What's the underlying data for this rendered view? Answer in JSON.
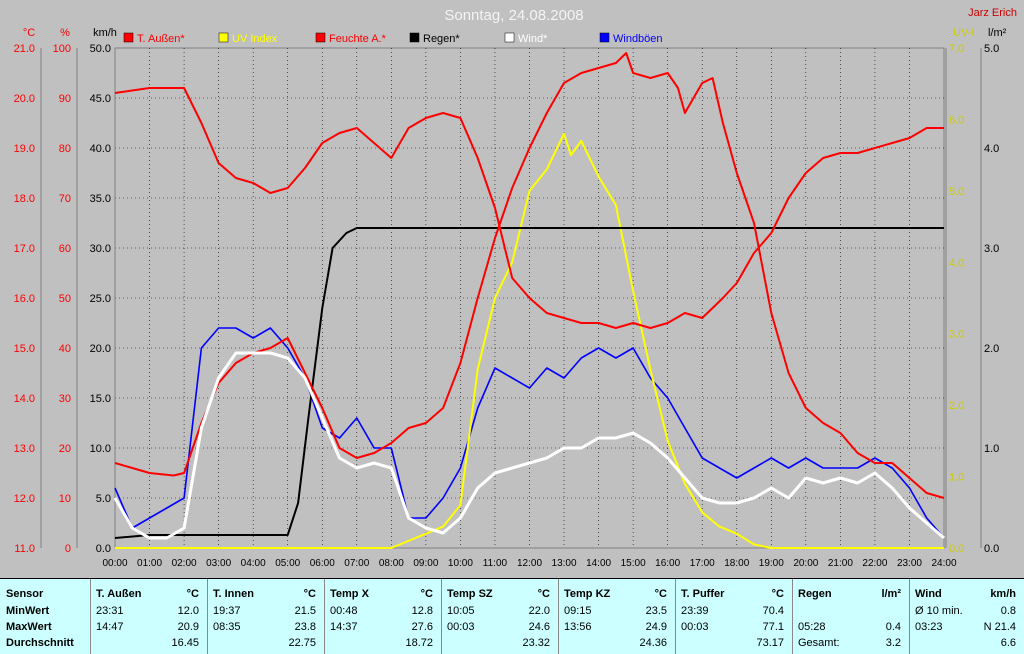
{
  "title": "Sonntag, 24.08.2008",
  "author": "Jarz Erich",
  "axis_units": {
    "temp": "°C",
    "hum": "%",
    "wind": "km/h",
    "uv": "UV-I",
    "rain": "l/m²"
  },
  "legend": [
    {
      "label": "T. Außen*",
      "color": "#ff0000"
    },
    {
      "label": "UV Index",
      "color": "#ffff00"
    },
    {
      "label": "Feuchte A.*",
      "color": "#ff0000"
    },
    {
      "label": "Regen*",
      "color": "#000000"
    },
    {
      "label": "Wind*",
      "color": "#ffffff"
    },
    {
      "label": "Windböen",
      "color": "#0000ff"
    }
  ],
  "chart_data": {
    "type": "line",
    "title": "Sonntag, 24.08.2008",
    "x_labels": [
      "00:00",
      "01:00",
      "02:00",
      "03:00",
      "04:00",
      "05:00",
      "06:00",
      "07:00",
      "08:00",
      "09:00",
      "10:00",
      "11:00",
      "12:00",
      "13:00",
      "14:00",
      "15:00",
      "16:00",
      "17:00",
      "18:00",
      "19:00",
      "20:00",
      "21:00",
      "22:00",
      "23:00",
      "24:00"
    ],
    "xlim": [
      0,
      24
    ],
    "grid": true,
    "axes": {
      "temp": {
        "unit": "°C",
        "ticks": [
          "21.0",
          "20.0",
          "19.0",
          "18.0",
          "17.0",
          "16.0",
          "15.0",
          "14.0",
          "13.0",
          "12.0",
          "11.0"
        ],
        "range": [
          11,
          21
        ]
      },
      "hum": {
        "unit": "%",
        "ticks": [
          "100",
          "90",
          "80",
          "70",
          "60",
          "50",
          "40",
          "30",
          "20",
          "10",
          "0"
        ],
        "range": [
          0,
          100
        ]
      },
      "wind": {
        "unit": "km/h",
        "ticks": [
          "50.0",
          "45.0",
          "40.0",
          "35.0",
          "30.0",
          "25.0",
          "20.0",
          "15.0",
          "10.0",
          "5.0",
          "0.0"
        ],
        "range": [
          0,
          50
        ]
      },
      "uv": {
        "unit": "UV-I",
        "ticks": [
          "7.0",
          "6.0",
          "5.0",
          "4.0",
          "3.0",
          "2.0",
          "1.0",
          "0.0"
        ],
        "range": [
          0,
          7
        ]
      },
      "rain": {
        "unit": "l/m²",
        "ticks": [
          "5.0",
          "4.0",
          "3.0",
          "2.0",
          "1.0",
          "0.0"
        ],
        "range": [
          0,
          5
        ]
      }
    },
    "series": [
      {
        "name": "T. Außen*",
        "axis": "temp",
        "color": "#ff0000",
        "points": [
          [
            0,
            12.7
          ],
          [
            1,
            12.5
          ],
          [
            1.7,
            12.45
          ],
          [
            2,
            12.5
          ],
          [
            2.5,
            13.5
          ],
          [
            3,
            14.3
          ],
          [
            3.5,
            14.7
          ],
          [
            4,
            14.9
          ],
          [
            4.5,
            15.0
          ],
          [
            5,
            15.2
          ],
          [
            5.5,
            14.5
          ],
          [
            6,
            13.8
          ],
          [
            6.5,
            13.0
          ],
          [
            7,
            12.8
          ],
          [
            7.5,
            12.9
          ],
          [
            8,
            13.1
          ],
          [
            8.5,
            13.4
          ],
          [
            9,
            13.5
          ],
          [
            9.5,
            13.8
          ],
          [
            10,
            14.7
          ],
          [
            10.5,
            16.0
          ],
          [
            11,
            17.2
          ],
          [
            11.5,
            18.2
          ],
          [
            12,
            19.0
          ],
          [
            12.5,
            19.7
          ],
          [
            13,
            20.3
          ],
          [
            13.5,
            20.5
          ],
          [
            14,
            20.6
          ],
          [
            14.5,
            20.7
          ],
          [
            14.8,
            20.9
          ],
          [
            15,
            20.5
          ],
          [
            15.5,
            20.4
          ],
          [
            16,
            20.5
          ],
          [
            16.3,
            20.2
          ],
          [
            16.5,
            19.7
          ],
          [
            17,
            20.3
          ],
          [
            17.3,
            20.4
          ],
          [
            17.6,
            19.5
          ],
          [
            18,
            18.5
          ],
          [
            18.5,
            17.5
          ],
          [
            19,
            15.7
          ],
          [
            19.5,
            14.5
          ],
          [
            20,
            13.8
          ],
          [
            20.5,
            13.5
          ],
          [
            21,
            13.3
          ],
          [
            21.5,
            12.9
          ],
          [
            22,
            12.7
          ],
          [
            22.5,
            12.7
          ],
          [
            23,
            12.4
          ],
          [
            23.5,
            12.1
          ],
          [
            24,
            12.0
          ]
        ]
      },
      {
        "name": "Feuchte A.*",
        "axis": "hum",
        "color": "#ff0000",
        "points": [
          [
            0,
            91
          ],
          [
            1,
            92
          ],
          [
            2,
            92
          ],
          [
            2.5,
            85
          ],
          [
            3,
            77
          ],
          [
            3.5,
            74
          ],
          [
            4,
            73
          ],
          [
            4.5,
            71
          ],
          [
            5,
            72
          ],
          [
            5.5,
            76
          ],
          [
            6,
            81
          ],
          [
            6.5,
            83
          ],
          [
            7,
            84
          ],
          [
            7.5,
            81
          ],
          [
            8,
            78
          ],
          [
            8.5,
            84
          ],
          [
            9,
            86
          ],
          [
            9.5,
            87
          ],
          [
            10,
            86
          ],
          [
            10.5,
            78
          ],
          [
            11,
            68
          ],
          [
            11.5,
            54
          ],
          [
            12,
            50
          ],
          [
            12.5,
            47
          ],
          [
            13,
            46
          ],
          [
            13.5,
            45
          ],
          [
            14,
            45
          ],
          [
            14.5,
            44
          ],
          [
            15,
            45
          ],
          [
            15.5,
            44
          ],
          [
            16,
            45
          ],
          [
            16.5,
            47
          ],
          [
            17,
            46
          ],
          [
            17.3,
            48
          ],
          [
            17.6,
            50
          ],
          [
            18,
            53
          ],
          [
            18.5,
            59
          ],
          [
            19,
            63
          ],
          [
            19.5,
            70
          ],
          [
            20,
            75
          ],
          [
            20.5,
            78
          ],
          [
            21,
            79
          ],
          [
            21.5,
            79
          ],
          [
            22,
            80
          ],
          [
            22.5,
            81
          ],
          [
            23,
            82
          ],
          [
            23.5,
            84
          ],
          [
            24,
            84
          ]
        ]
      },
      {
        "name": "Regen*",
        "axis": "rain",
        "color": "#000000",
        "points": [
          [
            0,
            0.1
          ],
          [
            1,
            0.13
          ],
          [
            2,
            0.13
          ],
          [
            3,
            0.13
          ],
          [
            4,
            0.13
          ],
          [
            5,
            0.13
          ],
          [
            5.3,
            0.45
          ],
          [
            5.6,
            1.3
          ],
          [
            6,
            2.4
          ],
          [
            6.3,
            3.0
          ],
          [
            6.7,
            3.15
          ],
          [
            7,
            3.2
          ],
          [
            8,
            3.2
          ],
          [
            12,
            3.2
          ],
          [
            18,
            3.2
          ],
          [
            24,
            3.2
          ]
        ]
      },
      {
        "name": "UV Index",
        "axis": "uv",
        "color": "#ffff00",
        "points": [
          [
            0,
            0
          ],
          [
            8,
            0
          ],
          [
            9.5,
            0.3
          ],
          [
            10,
            0.6
          ],
          [
            10.5,
            2.5
          ],
          [
            11,
            3.5
          ],
          [
            11.5,
            4.0
          ],
          [
            12,
            5.0
          ],
          [
            12.5,
            5.3
          ],
          [
            13,
            5.8
          ],
          [
            13.2,
            5.5
          ],
          [
            13.5,
            5.7
          ],
          [
            14,
            5.2
          ],
          [
            14.5,
            4.8
          ],
          [
            15,
            3.6
          ],
          [
            15.5,
            2.5
          ],
          [
            16,
            1.5
          ],
          [
            16.5,
            0.9
          ],
          [
            17,
            0.5
          ],
          [
            17.5,
            0.3
          ],
          [
            18,
            0.2
          ],
          [
            18.5,
            0.05
          ],
          [
            19,
            0
          ],
          [
            24,
            0
          ]
        ]
      },
      {
        "name": "Wind*",
        "axis": "wind",
        "color": "#ffffff",
        "points": [
          [
            0,
            5
          ],
          [
            0.5,
            2
          ],
          [
            1,
            1
          ],
          [
            1.5,
            1
          ],
          [
            2,
            2
          ],
          [
            2.5,
            12
          ],
          [
            3,
            17
          ],
          [
            3.5,
            19.5
          ],
          [
            4,
            19.5
          ],
          [
            4.5,
            19.5
          ],
          [
            5,
            19
          ],
          [
            5.5,
            17
          ],
          [
            6,
            13
          ],
          [
            6.5,
            9
          ],
          [
            7,
            8
          ],
          [
            7.5,
            8.5
          ],
          [
            8,
            8
          ],
          [
            8.5,
            3
          ],
          [
            9,
            2
          ],
          [
            9.5,
            1.5
          ],
          [
            10,
            3
          ],
          [
            10.5,
            6
          ],
          [
            11,
            7.5
          ],
          [
            11.5,
            8
          ],
          [
            12,
            8.5
          ],
          [
            12.5,
            9
          ],
          [
            13,
            10
          ],
          [
            13.5,
            10
          ],
          [
            14,
            11
          ],
          [
            14.5,
            11
          ],
          [
            15,
            11.5
          ],
          [
            15.5,
            10.5
          ],
          [
            16,
            9
          ],
          [
            16.5,
            7
          ],
          [
            17,
            5
          ],
          [
            17.5,
            4.5
          ],
          [
            18,
            4.5
          ],
          [
            18.5,
            5
          ],
          [
            19,
            6
          ],
          [
            19.5,
            5
          ],
          [
            20,
            7
          ],
          [
            20.5,
            6.5
          ],
          [
            21,
            7
          ],
          [
            21.5,
            6.5
          ],
          [
            22,
            7.5
          ],
          [
            22.5,
            6
          ],
          [
            23,
            4
          ],
          [
            23.5,
            2.5
          ],
          [
            24,
            1
          ]
        ]
      },
      {
        "name": "Windböen",
        "axis": "wind",
        "color": "#0000ff",
        "points": [
          [
            0,
            6
          ],
          [
            0.5,
            2
          ],
          [
            1,
            3
          ],
          [
            1.5,
            4
          ],
          [
            2,
            5
          ],
          [
            2.5,
            20
          ],
          [
            3,
            22
          ],
          [
            3.5,
            22
          ],
          [
            4,
            21
          ],
          [
            4.5,
            22
          ],
          [
            5,
            20
          ],
          [
            5.5,
            17
          ],
          [
            6,
            12
          ],
          [
            6.5,
            11
          ],
          [
            7,
            13
          ],
          [
            7.5,
            10
          ],
          [
            8,
            10
          ],
          [
            8.5,
            3
          ],
          [
            9,
            3
          ],
          [
            9.5,
            5
          ],
          [
            10,
            8
          ],
          [
            10.5,
            14
          ],
          [
            11,
            18
          ],
          [
            11.5,
            17
          ],
          [
            12,
            16
          ],
          [
            12.5,
            18
          ],
          [
            13,
            17
          ],
          [
            13.5,
            19
          ],
          [
            14,
            20
          ],
          [
            14.5,
            19
          ],
          [
            15,
            20
          ],
          [
            15.5,
            17
          ],
          [
            16,
            15
          ],
          [
            16.5,
            12
          ],
          [
            17,
            9
          ],
          [
            17.5,
            8
          ],
          [
            18,
            7
          ],
          [
            18.5,
            8
          ],
          [
            19,
            9
          ],
          [
            19.5,
            8
          ],
          [
            20,
            9
          ],
          [
            20.5,
            8
          ],
          [
            21,
            8
          ],
          [
            21.5,
            8
          ],
          [
            22,
            9
          ],
          [
            22.5,
            8
          ],
          [
            23,
            6
          ],
          [
            23.5,
            3
          ],
          [
            24,
            1
          ]
        ]
      }
    ]
  },
  "stats": {
    "sensor_header": "Sensor",
    "row_labels": [
      "MinWert",
      "MaxWert",
      "Durchschnitt"
    ],
    "columns": [
      {
        "name": "T. Außen",
        "unit": "°C",
        "min_time": "23:31",
        "min": "12.0",
        "max_time": "14:47",
        "max": "20.9",
        "avg": "16.45"
      },
      {
        "name": "T. Innen",
        "unit": "°C",
        "min_time": "19:37",
        "min": "21.5",
        "max_time": "08:35",
        "max": "23.8",
        "avg": "22.75"
      },
      {
        "name": "Temp X",
        "unit": "°C",
        "min_time": "00:48",
        "min": "12.8",
        "max_time": "14:37",
        "max": "27.6",
        "avg": "18.72"
      },
      {
        "name": "Temp SZ",
        "unit": "°C",
        "min_time": "10:05",
        "min": "22.0",
        "max_time": "00:03",
        "max": "24.6",
        "avg": "23.32"
      },
      {
        "name": "Temp KZ",
        "unit": "°C",
        "min_time": "09:15",
        "min": "23.5",
        "max_time": "13:56",
        "max": "24.9",
        "avg": "24.36"
      },
      {
        "name": "T. Puffer",
        "unit": "°C",
        "min_time": "23:39",
        "min": "70.4",
        "max_time": "00:03",
        "max": "77.1",
        "avg": "73.17"
      },
      {
        "name": "Regen",
        "unit": "l/m²",
        "min_time": "",
        "min": "",
        "max_time": "05:28",
        "max": "0.4",
        "avg_label": "Gesamt:",
        "avg": "3.2"
      },
      {
        "name": "Wind",
        "unit": "km/h",
        "min_time": "Ø 10 min.",
        "min": "0.8",
        "max_time": "03:23",
        "max": "N 21.4",
        "avg": "6.6"
      }
    ]
  }
}
